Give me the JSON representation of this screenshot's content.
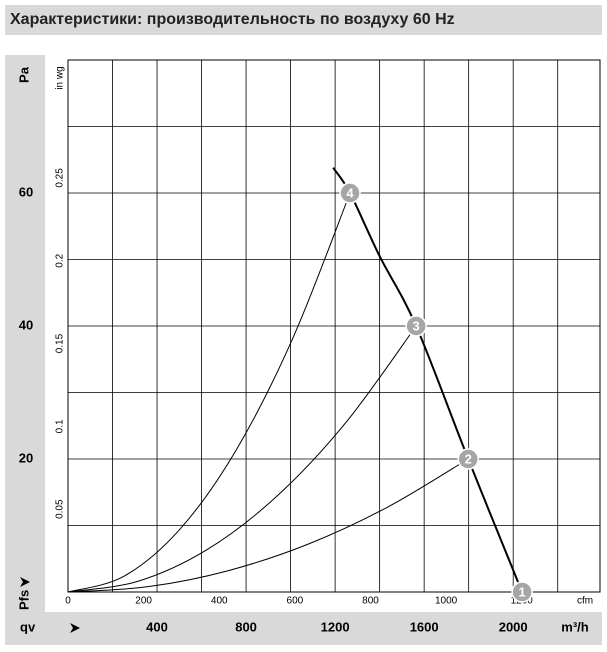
{
  "chart_data": {
    "type": "line",
    "title": "Характеристики: производительность по воздуху 60 Hz",
    "y_label": "Pa",
    "y2_label": "in wg",
    "x_label": "m³/h",
    "x2_label": "cfm",
    "x_name": "qv",
    "y_name": "Pfs",
    "xlim": [
      0,
      2390
    ],
    "ylim": [
      0,
      80
    ],
    "xticks": [
      400,
      800,
      1200,
      1600,
      2000
    ],
    "yticks": [
      20,
      40,
      60
    ],
    "xgrid": [
      200,
      400,
      600,
      800,
      1000,
      1200,
      1400,
      1600,
      1800,
      2000,
      2200
    ],
    "ygrid": [
      10,
      20,
      30,
      40,
      50,
      60,
      70
    ],
    "x2lim": [
      0,
      1407
    ],
    "x2ticks": [
      0,
      200,
      400,
      600,
      800,
      1000,
      1200
    ],
    "y2lim": [
      0,
      0.3212
    ],
    "y2ticks": [
      0.05,
      0.1,
      0.15,
      0.2,
      0.25
    ],
    "series": [
      {
        "name": "fan",
        "color": "#000000",
        "x": [
          1191,
          1267,
          1400,
          1564,
          1798,
          2040
        ],
        "values": [
          63.8,
          60,
          50.5,
          40,
          20,
          0
        ]
      },
      {
        "name": "4",
        "color": "#000000",
        "x": [
          0,
          253,
          507,
          760,
          1013,
          1267
        ],
        "values": [
          0,
          2.4,
          9.6,
          21.6,
          38.4,
          60
        ]
      },
      {
        "name": "3",
        "color": "#000000",
        "x": [
          0,
          313,
          626,
          938,
          1251,
          1564
        ],
        "values": [
          0,
          1.6,
          6.4,
          14.4,
          25.6,
          40
        ]
      },
      {
        "name": "2",
        "color": "#000000",
        "x": [
          0,
          360,
          719,
          1079,
          1438,
          1798
        ],
        "values": [
          0,
          0.8,
          3.2,
          7.2,
          12.8,
          20
        ]
      }
    ],
    "points": [
      {
        "label": "1",
        "x": 2040,
        "y": 0
      },
      {
        "label": "2",
        "x": 1798,
        "y": 20
      },
      {
        "label": "3",
        "x": 1564,
        "y": 40
      },
      {
        "label": "4",
        "x": 1267,
        "y": 60
      }
    ]
  }
}
